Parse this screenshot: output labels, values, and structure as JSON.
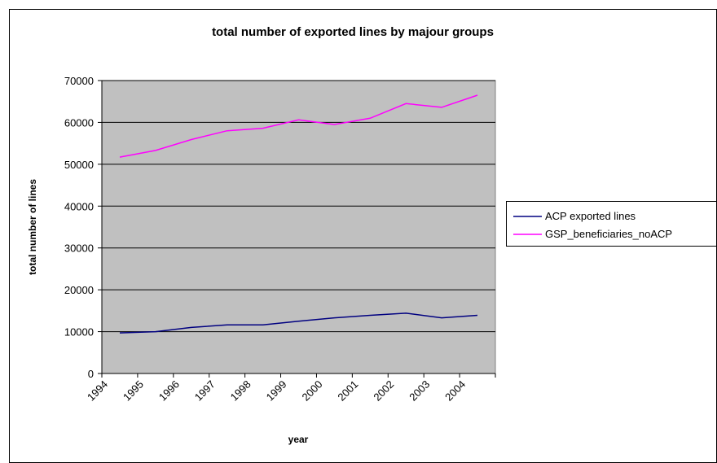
{
  "chart_data": {
    "type": "line",
    "title": "total number of exported lines by majour groups",
    "xlabel": "year",
    "ylabel": "total number of lines",
    "categories": [
      "1994",
      "1995",
      "1996",
      "1997",
      "1998",
      "1999",
      "2000",
      "2001",
      "2002",
      "2003",
      "2004"
    ],
    "ylim": [
      0,
      70000
    ],
    "yticks": [
      0,
      10000,
      20000,
      30000,
      40000,
      50000,
      60000,
      70000
    ],
    "grid": "horizontal",
    "plot_background": "#c0c0c0",
    "legend_position": "right",
    "series": [
      {
        "name": "ACP exported lines",
        "color": "#000080",
        "values": [
          9700,
          10000,
          11000,
          11600,
          11600,
          12500,
          13300,
          13900,
          14400,
          13300,
          13900
        ]
      },
      {
        "name": "GSP_beneficiaries_noACP",
        "color": "#ff00ff",
        "values": [
          51700,
          53300,
          55900,
          58000,
          58600,
          60600,
          59500,
          61000,
          64500,
          63600,
          66500
        ]
      }
    ]
  }
}
